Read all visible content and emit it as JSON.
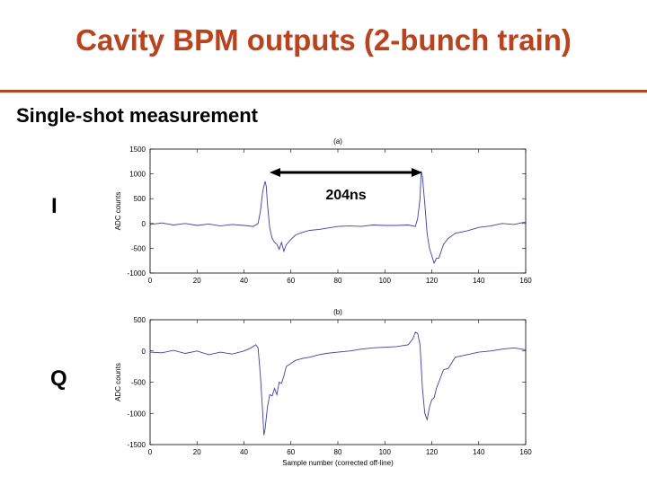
{
  "slide": {
    "title": "Cavity BPM outputs (2-bunch train)",
    "subtitle": "Single-shot measurement",
    "label_i": "I",
    "label_q": "Q",
    "annotation": "204ns",
    "accent_color": "#c0401a"
  },
  "chart_data": [
    {
      "type": "line",
      "panel": "(a)",
      "ylabel": "ADC counts",
      "xlabel": "",
      "xlim": [
        0,
        160
      ],
      "ylim": [
        -1000,
        1500
      ],
      "xticks": [
        0,
        20,
        40,
        60,
        80,
        100,
        120,
        140,
        160
      ],
      "yticks": [
        -1000,
        -500,
        0,
        500,
        1000,
        1500
      ],
      "grid": false,
      "series_color": "#3b3bd0",
      "series": [
        {
          "x": [
            0,
            5,
            10,
            15,
            20,
            25,
            30,
            35,
            40,
            44,
            46,
            47,
            48,
            49,
            49.5,
            50,
            51,
            52,
            53,
            54,
            55,
            56,
            57,
            58,
            60,
            62,
            65,
            68,
            72,
            76,
            80,
            85,
            90,
            95,
            100,
            105,
            110,
            113,
            114,
            115,
            115.5,
            116,
            117,
            118,
            119,
            120,
            121,
            122,
            123,
            125,
            127,
            130,
            135,
            140,
            145,
            150,
            155,
            160
          ],
          "y": [
            -20,
            10,
            -30,
            0,
            -40,
            -10,
            -50,
            -20,
            -40,
            -60,
            0,
            250,
            650,
            850,
            750,
            400,
            -100,
            -300,
            -380,
            -420,
            -520,
            -380,
            -560,
            -430,
            -320,
            -230,
            -180,
            -140,
            -120,
            -90,
            -60,
            -50,
            -60,
            -30,
            -40,
            -40,
            -30,
            -60,
            100,
            500,
            1050,
            950,
            400,
            -200,
            -500,
            -650,
            -800,
            -700,
            -700,
            -420,
            -300,
            -200,
            -150,
            -80,
            -50,
            0,
            -20,
            30
          ]
        }
      ]
    },
    {
      "type": "line",
      "panel": "(b)",
      "ylabel": "ADC counts",
      "xlabel": "Sample number (corrected off-line)",
      "xlim": [
        0,
        160
      ],
      "ylim": [
        -1500,
        500
      ],
      "xticks": [
        0,
        20,
        40,
        60,
        80,
        100,
        120,
        140,
        160
      ],
      "yticks": [
        -1500,
        -1000,
        -500,
        0,
        500
      ],
      "grid": false,
      "series_color": "#3b3bd0",
      "series": [
        {
          "x": [
            0,
            5,
            10,
            15,
            20,
            25,
            30,
            35,
            40,
            43,
            45,
            46,
            47,
            48,
            48.5,
            49,
            50,
            51,
            52,
            53,
            54,
            55,
            56,
            57,
            58,
            60,
            62,
            65,
            68,
            72,
            75,
            80,
            85,
            90,
            95,
            100,
            105,
            110,
            112,
            113,
            114,
            115,
            116,
            117,
            118,
            119,
            120,
            121,
            122,
            123,
            125,
            127,
            130,
            135,
            140,
            145,
            150,
            155,
            160
          ],
          "y": [
            -20,
            -30,
            10,
            -40,
            0,
            -60,
            -20,
            -50,
            0,
            50,
            100,
            50,
            -400,
            -1000,
            -1350,
            -1250,
            -900,
            -700,
            -720,
            -600,
            -700,
            -500,
            -520,
            -400,
            -250,
            -200,
            -150,
            -120,
            -100,
            -60,
            -40,
            -20,
            0,
            30,
            50,
            60,
            70,
            100,
            200,
            300,
            280,
            100,
            -600,
            -1000,
            -1100,
            -900,
            -780,
            -750,
            -600,
            -500,
            -300,
            -280,
            -100,
            -60,
            -20,
            0,
            30,
            50,
            20
          ]
        }
      ]
    }
  ]
}
